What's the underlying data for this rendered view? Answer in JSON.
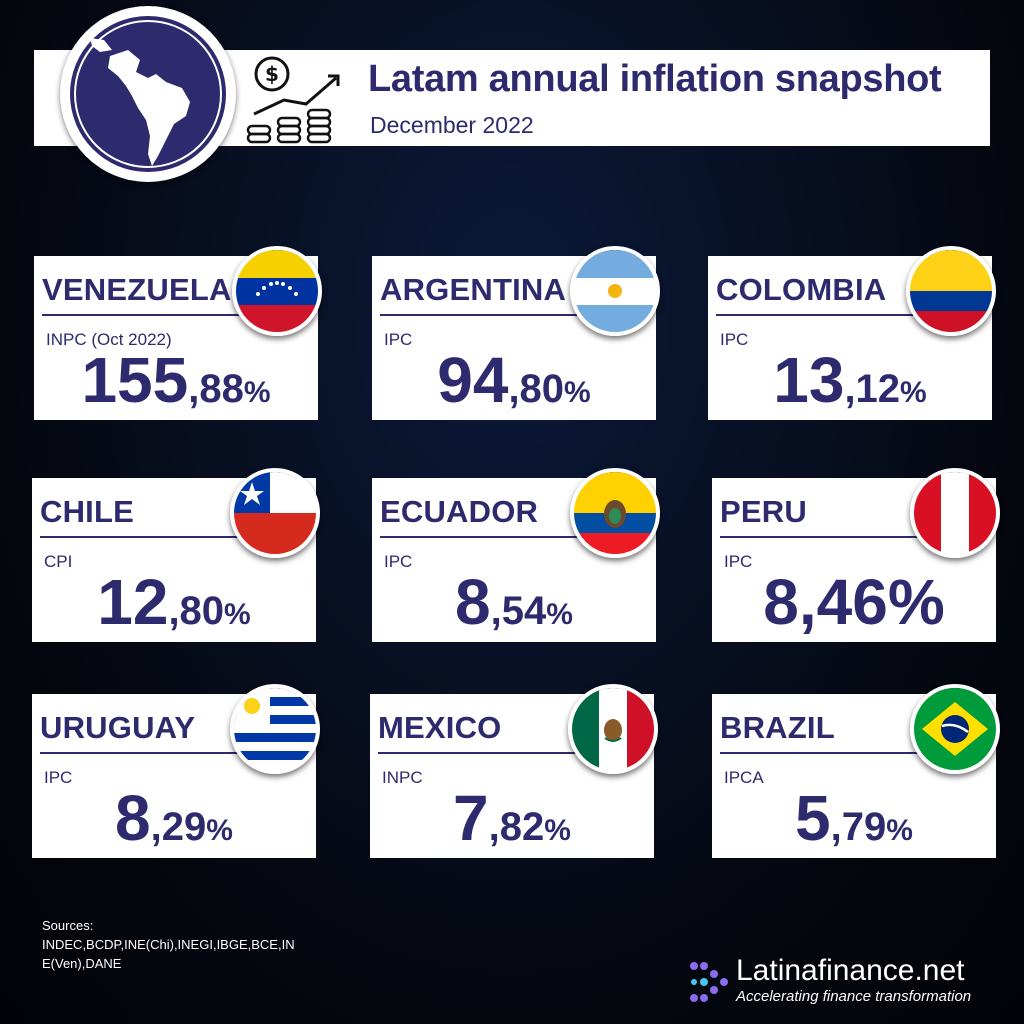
{
  "header": {
    "title": "Latam annual inflation snapshot",
    "subtitle": "December 2022"
  },
  "colors": {
    "navy": "#2d2a6e",
    "background": "#05070f",
    "card": "#ffffff"
  },
  "icons": {
    "globe": "latin-america-globe-icon",
    "money": "coin-stack-growth-icon"
  },
  "countries": [
    {
      "name": "VENEZUELA",
      "index": "INPC (Oct 2022)",
      "int": "155",
      "dec": ",88",
      "pct": "%",
      "flag": "venezuela-flag-icon"
    },
    {
      "name": "ARGENTINA",
      "index": "IPC",
      "int": "94",
      "dec": ",80",
      "pct": "%",
      "flag": "argentina-flag-icon"
    },
    {
      "name": "COLOMBIA",
      "index": "IPC",
      "int": "13",
      "dec": ",12",
      "pct": "%",
      "flag": "colombia-flag-icon"
    },
    {
      "name": "CHILE",
      "index": "CPI",
      "int": "12",
      "dec": ",80",
      "pct": "%",
      "flag": "chile-flag-icon"
    },
    {
      "name": "ECUADOR",
      "index": "IPC",
      "int": "8",
      "dec": ",54",
      "pct": "%",
      "flag": "ecuador-flag-icon"
    },
    {
      "name": "PERU",
      "index": "IPC",
      "int": "8,46%",
      "dec": "",
      "pct": "",
      "flag": "peru-flag-icon"
    },
    {
      "name": "URUGUAY",
      "index": "IPC",
      "int": "8",
      "dec": ",29",
      "pct": "%",
      "flag": "uruguay-flag-icon"
    },
    {
      "name": "MEXICO",
      "index": "INPC",
      "int": "7",
      "dec": ",82",
      "pct": "%",
      "flag": "mexico-flag-icon"
    },
    {
      "name": "BRAZIL",
      "index": "IPCA",
      "int": "5",
      "dec": ",79",
      "pct": "%",
      "flag": "brazil-flag-icon"
    }
  ],
  "sources": {
    "label": "Sources:",
    "text": "INDEC,BCDP,INE(Chi),INEGI,IBGE,BCE,INE(Ven),DANE"
  },
  "brand": {
    "name": "Latinafinance.net",
    "tagline": "Accelerating finance transformation",
    "logo": "latinafinance-logo-icon"
  }
}
